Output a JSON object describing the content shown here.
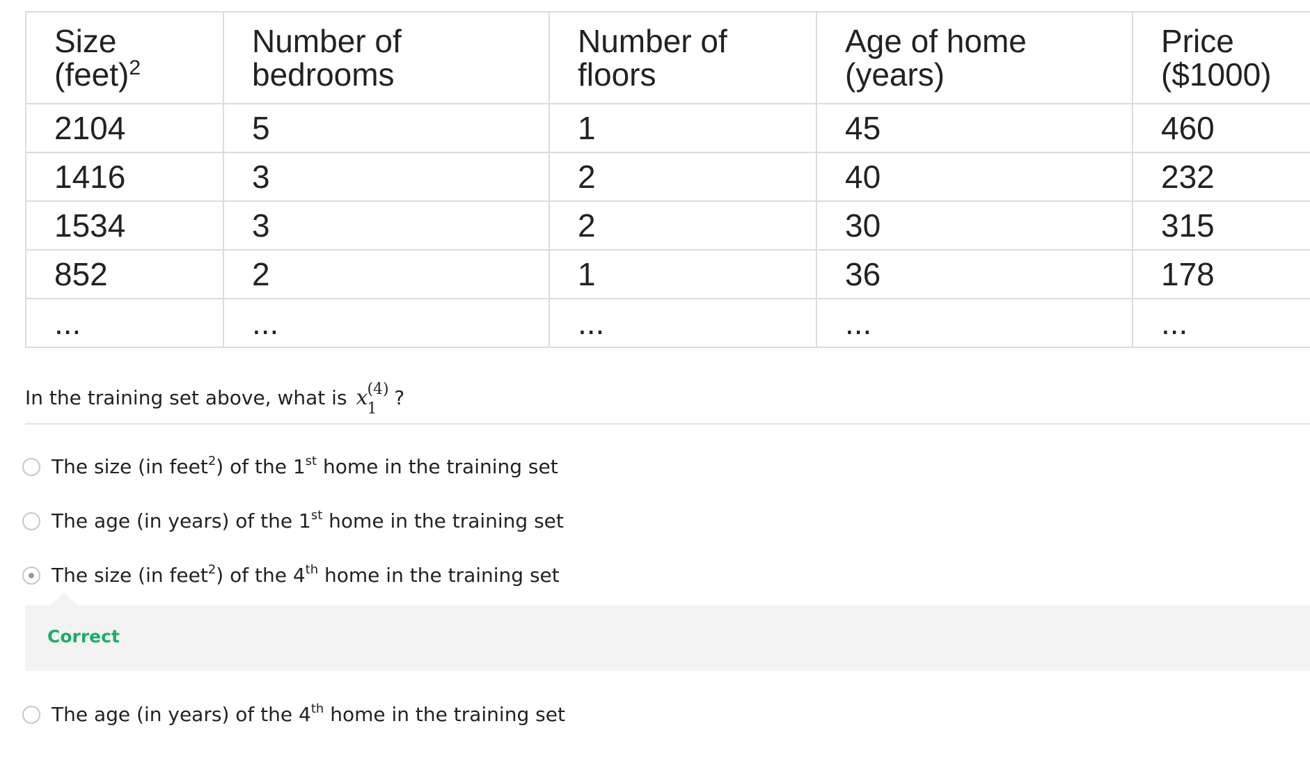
{
  "table": {
    "headers": [
      {
        "line1": "Size",
        "line2": "(feet)",
        "sup": "2"
      },
      {
        "line1": "Number of",
        "line2": "bedrooms",
        "sup": ""
      },
      {
        "line1": "Number of",
        "line2": "floors",
        "sup": ""
      },
      {
        "line1": "Age of home",
        "line2": "(years)",
        "sup": ""
      },
      {
        "line1": "Price",
        "line2": "($1000)",
        "sup": ""
      }
    ],
    "rows": [
      [
        "2104",
        "5",
        "1",
        "45",
        "460"
      ],
      [
        "1416",
        "3",
        "2",
        "40",
        "232"
      ],
      [
        "1534",
        "3",
        "2",
        "30",
        "315"
      ],
      [
        "852",
        "2",
        "1",
        "36",
        "178"
      ],
      [
        "...",
        "...",
        "...",
        "...",
        "..."
      ]
    ]
  },
  "question": {
    "prefix": "In the training set above, what is ",
    "math_base": "x",
    "math_sup": "(4)",
    "math_sub": "1",
    "suffix": "?"
  },
  "options": [
    {
      "pre": "The size (in feet",
      "sup1": "2",
      "mid": ") of the 1",
      "sup2": "st",
      "post": " home in the training set",
      "selected": false
    },
    {
      "pre": "The age (in years) of the 1",
      "sup1": "st",
      "mid": " home in the training set",
      "sup2": "",
      "post": "",
      "selected": false
    },
    {
      "pre": "The size (in feet",
      "sup1": "2",
      "mid": ") of the 4",
      "sup2": "th",
      "post": " home in the training set",
      "selected": true
    },
    {
      "pre": "The age (in years) of the 4",
      "sup1": "th",
      "mid": " home in the training set",
      "sup2": "",
      "post": "",
      "selected": false
    }
  ],
  "feedback": {
    "label": "Correct",
    "color": "#1fab6a"
  }
}
